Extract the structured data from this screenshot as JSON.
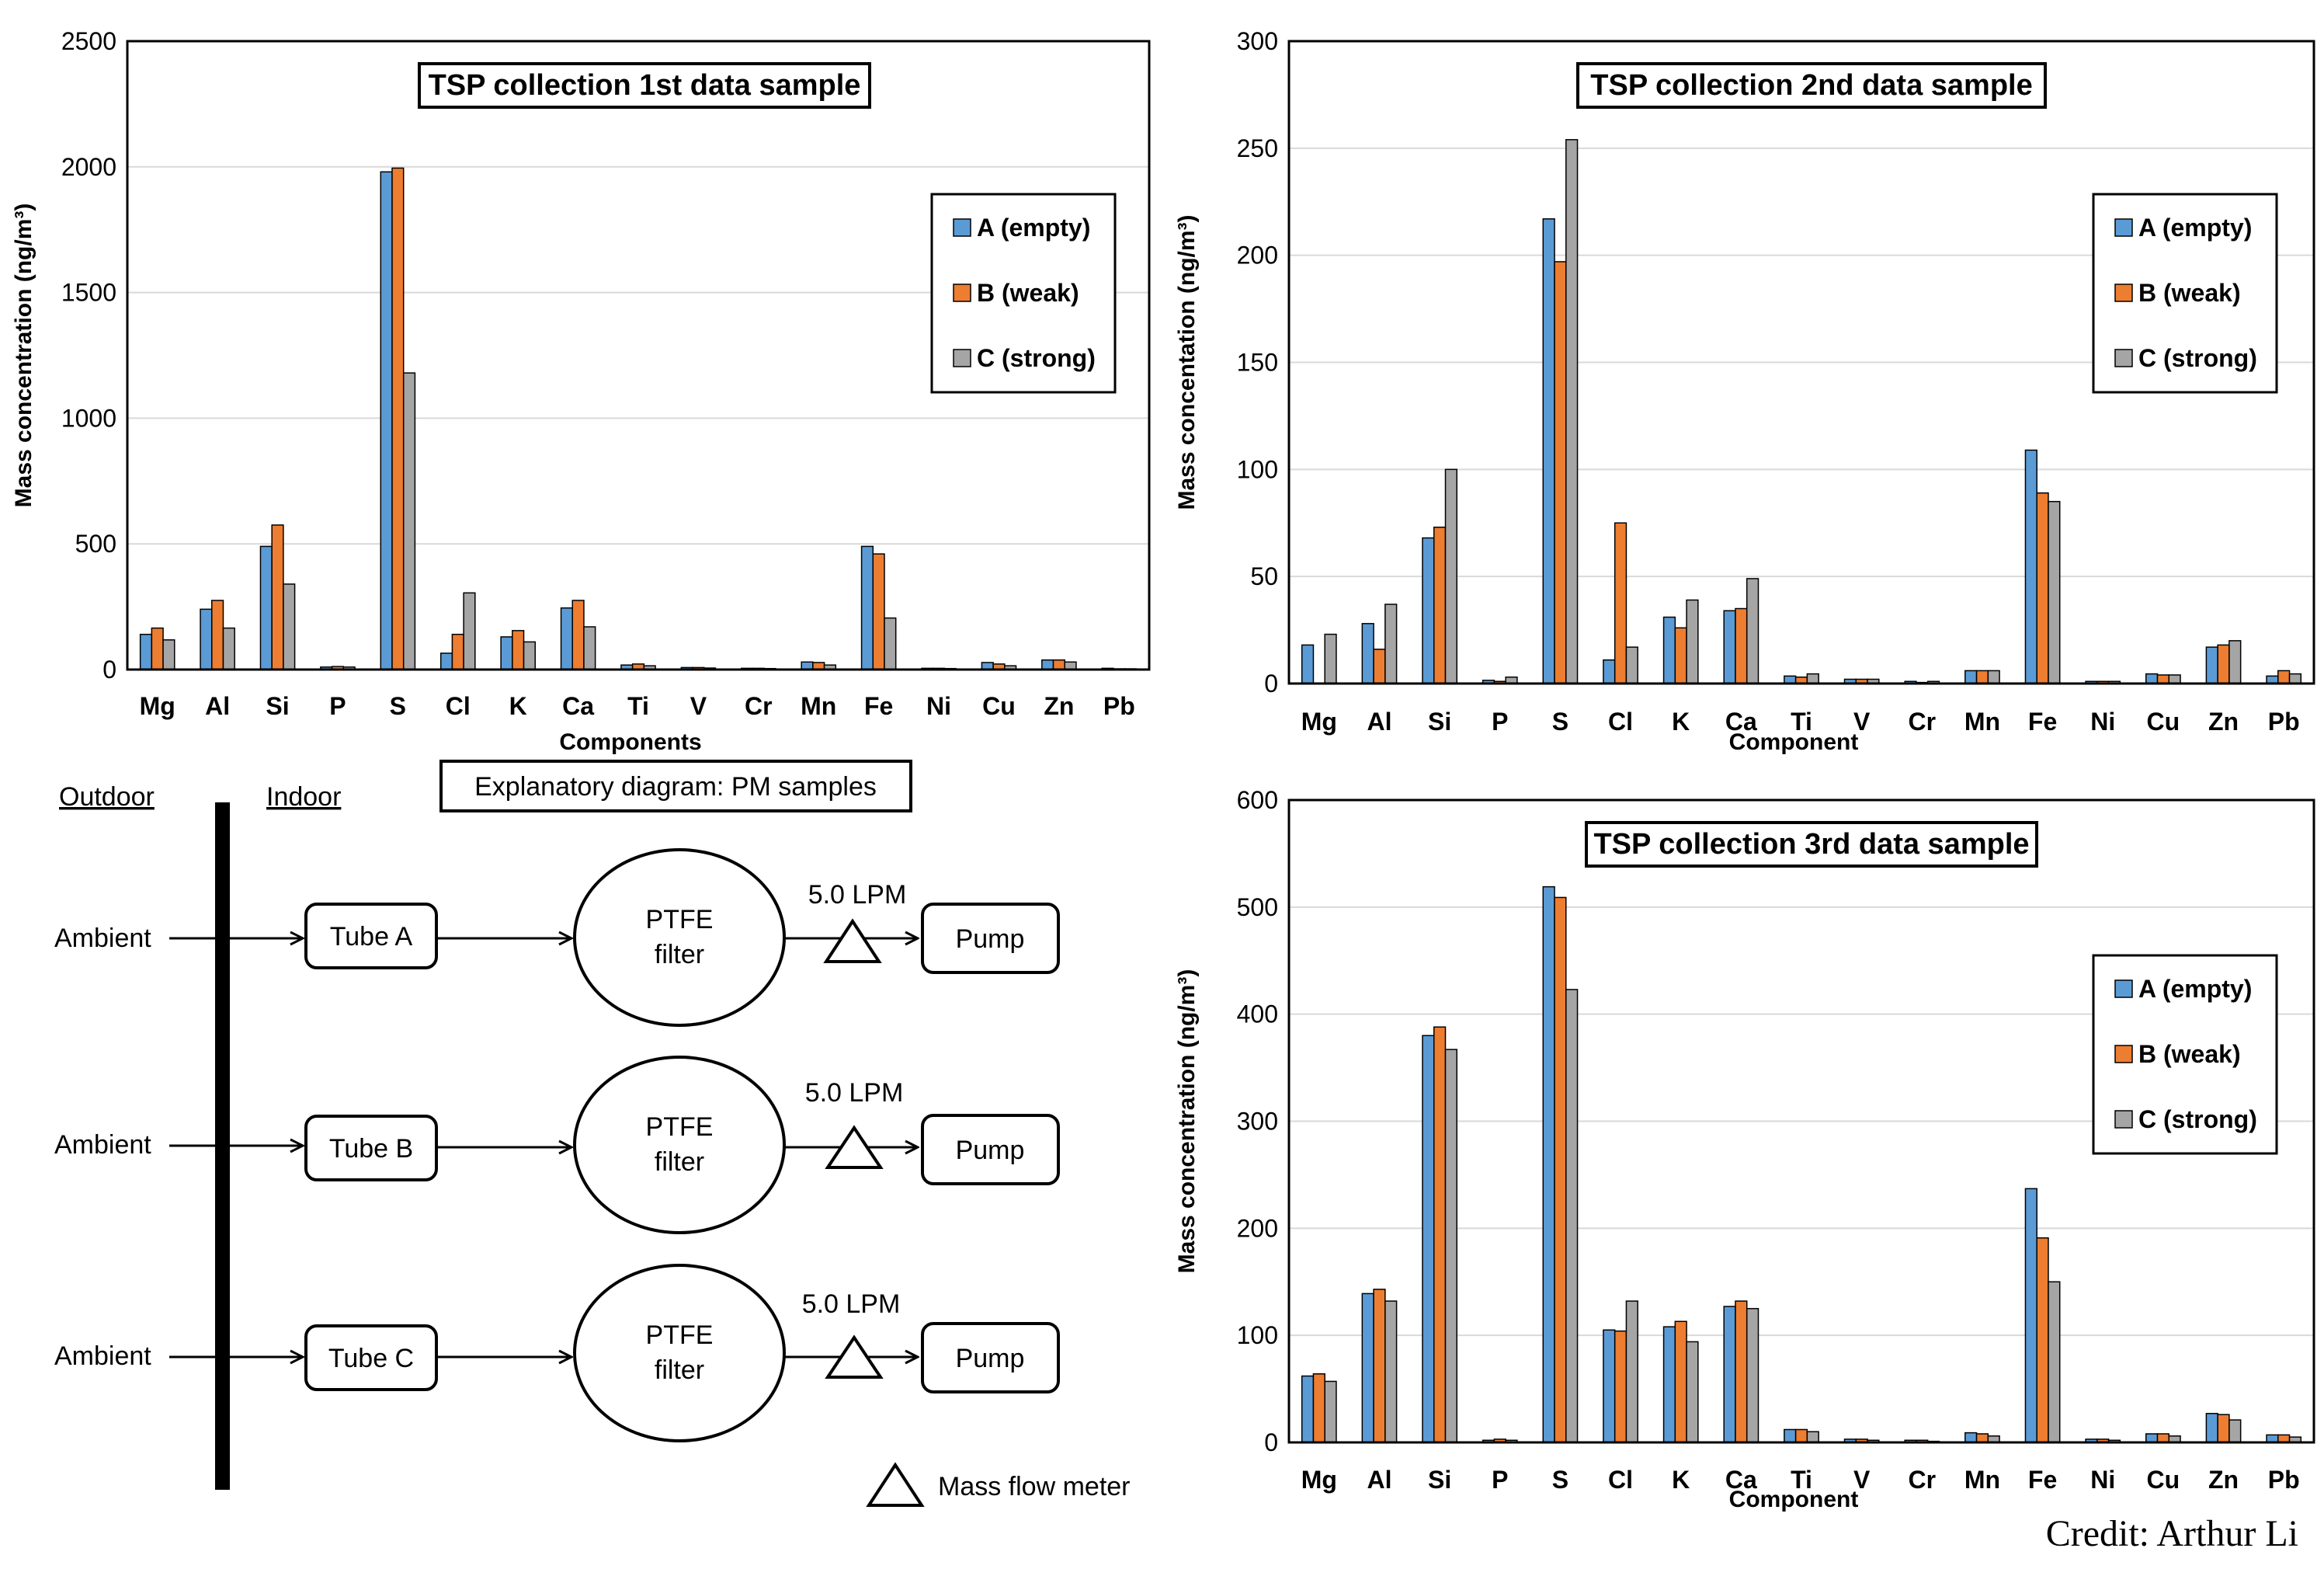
{
  "colors": {
    "A": "#5B9BD5",
    "B": "#ED7D31",
    "C": "#A5A5A5"
  },
  "chart_data": [
    {
      "type": "bar",
      "title": "TSP collection 1st data sample",
      "xlabel": "Components",
      "ylabel": "Mass concentration (ng/m³)",
      "ylim": [
        0,
        2500
      ],
      "yticks": [
        0,
        500,
        1000,
        1500,
        2000,
        2500
      ],
      "categories": [
        "Mg",
        "Al",
        "Si",
        "P",
        "S",
        "Cl",
        "K",
        "Ca",
        "Ti",
        "V",
        "Cr",
        "Mn",
        "Fe",
        "Ni",
        "Cu",
        "Zn",
        "Pb"
      ],
      "series": [
        {
          "name": "A (empty)",
          "values": [
            140,
            240,
            490,
            10,
            1980,
            65,
            130,
            245,
            18,
            8,
            5,
            30,
            490,
            5,
            28,
            38,
            5
          ]
        },
        {
          "name": "B (weak)",
          "values": [
            165,
            275,
            575,
            12,
            1995,
            140,
            155,
            275,
            22,
            8,
            5,
            28,
            460,
            5,
            22,
            38,
            3
          ]
        },
        {
          "name": "C (strong)",
          "values": [
            118,
            165,
            340,
            10,
            1180,
            305,
            110,
            170,
            15,
            6,
            4,
            18,
            205,
            4,
            15,
            30,
            3
          ]
        }
      ],
      "legend": "top-right",
      "grid": true
    },
    {
      "type": "bar",
      "title": "TSP collection 2nd data sample",
      "xlabel": "Component",
      "ylabel": "Mass concentation (ng/m³)",
      "ylim": [
        0,
        300
      ],
      "yticks": [
        0,
        50,
        100,
        150,
        200,
        250,
        300
      ],
      "categories": [
        "Mg",
        "Al",
        "Si",
        "P",
        "S",
        "Cl",
        "K",
        "Ca",
        "Ti",
        "V",
        "Cr",
        "Mn",
        "Fe",
        "Ni",
        "Cu",
        "Zn",
        "Pb"
      ],
      "series": [
        {
          "name": "A (empty)",
          "values": [
            18,
            28,
            68,
            1.5,
            217,
            11,
            31,
            34,
            3.5,
            2,
            1,
            6,
            109,
            1,
            4.5,
            17,
            3.5
          ]
        },
        {
          "name": "B (weak)",
          "values": [
            0,
            16,
            73,
            1,
            197,
            75,
            26,
            35,
            3,
            2,
            0.5,
            6,
            89,
            1,
            4,
            18,
            6
          ]
        },
        {
          "name": "C (strong)",
          "values": [
            23,
            37,
            100,
            3,
            254,
            17,
            39,
            49,
            4.5,
            2,
            1,
            6,
            85,
            1,
            4,
            20,
            4.5
          ]
        }
      ],
      "legend": "top-right",
      "grid": true
    },
    {
      "type": "bar",
      "title": "TSP collection 3rd data sample",
      "xlabel": "Component",
      "ylabel": "Mass concentration (ng/m³)",
      "ylim": [
        0,
        600
      ],
      "yticks": [
        0,
        100,
        200,
        300,
        400,
        500,
        600
      ],
      "categories": [
        "Mg",
        "Al",
        "Si",
        "P",
        "S",
        "Cl",
        "K",
        "Ca",
        "Ti",
        "V",
        "Cr",
        "Mn",
        "Fe",
        "Ni",
        "Cu",
        "Zn",
        "Pb"
      ],
      "series": [
        {
          "name": "A (empty)",
          "values": [
            62,
            139,
            380,
            2,
            519,
            105,
            108,
            127,
            12,
            3,
            2,
            9,
            237,
            3,
            8,
            27,
            7
          ]
        },
        {
          "name": "B (weak)",
          "values": [
            64,
            143,
            388,
            3,
            509,
            104,
            113,
            132,
            12,
            3,
            2,
            8,
            191,
            3,
            8,
            26,
            7
          ]
        },
        {
          "name": "C (strong)",
          "values": [
            57,
            132,
            367,
            2,
            423,
            132,
            94,
            125,
            10,
            2,
            1,
            6,
            150,
            2,
            6,
            21,
            5
          ]
        }
      ],
      "legend": "top-right",
      "grid": true
    }
  ],
  "diagram": {
    "title": "Explanatory diagram: PM samples",
    "outdoor_label": "Outdoor",
    "indoor_label": "Indoor",
    "rows": [
      {
        "source": "Ambient",
        "tube": "Tube A",
        "filter_line1": "PTFE",
        "filter_line2": "filter",
        "flow": "5.0 LPM",
        "pump": "Pump"
      },
      {
        "source": "Ambient",
        "tube": "Tube B",
        "filter_line1": "PTFE",
        "filter_line2": "filter",
        "flow": "5.0 LPM",
        "pump": "Pump"
      },
      {
        "source": "Ambient",
        "tube": "Tube C",
        "filter_line1": "PTFE",
        "filter_line2": "filter",
        "flow": "5.0 LPM",
        "pump": "Pump"
      }
    ],
    "legend_label": "Mass flow meter"
  },
  "credit": "Credit: Arthur Li"
}
